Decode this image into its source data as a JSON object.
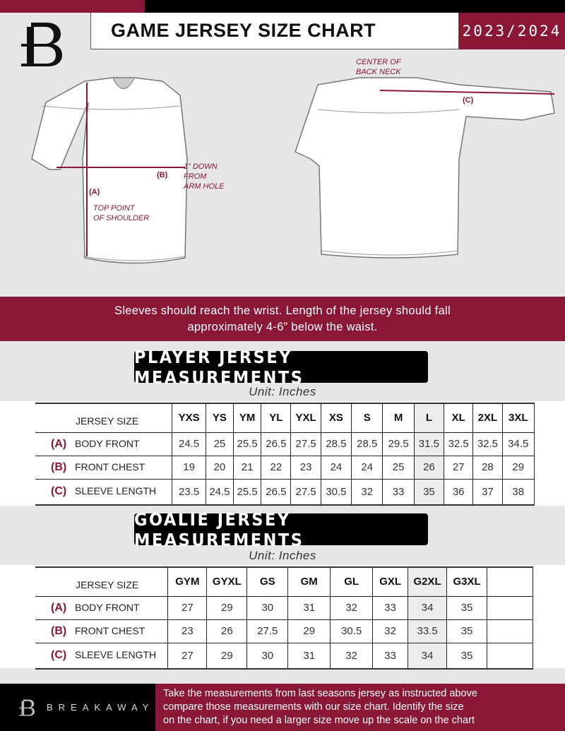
{
  "header": {
    "title": "GAME JERSEY SIZE CHART",
    "season": "2023/2024",
    "logo_text": "B"
  },
  "diagram": {
    "front_notes": {
      "b_label": "(B)",
      "b_note": [
        "1” DOWN",
        "FROM",
        "ARM HOLE"
      ],
      "a_label": "(A)",
      "a_note": [
        "TOP POINT",
        "OF SHOULDER"
      ]
    },
    "back_notes": {
      "center_note": [
        "CENTER OF",
        "BACK NECK"
      ],
      "c_label": "(C)"
    }
  },
  "banner": {
    "lines": [
      "Sleeves should reach the wrist. Length of the jersey should fall",
      "approximately 4-6” below the waist."
    ]
  },
  "player": {
    "heading": "PLAYER JERSEY MEASUREMENTS",
    "unit": "Unit: Inches",
    "size_label": "JERSEY SIZE",
    "sizes": [
      "YXS",
      "YS",
      "YM",
      "YL",
      "YXL",
      "XS",
      "S",
      "M",
      "L",
      "XL",
      "2XL",
      "3XL"
    ],
    "rows": [
      {
        "key": "(A)",
        "name": "BODY FRONT",
        "values": [
          "24.5",
          "25",
          "25.5",
          "26.5",
          "27.5",
          "28.5",
          "28.5",
          "29.5",
          "31.5",
          "32.5",
          "32.5",
          "34.5"
        ]
      },
      {
        "key": "(B)",
        "name": "FRONT CHEST",
        "values": [
          "19",
          "20",
          "21",
          "22",
          "23",
          "24",
          "24",
          "25",
          "26",
          "27",
          "28",
          "29"
        ]
      },
      {
        "key": "(C)",
        "name": "SLEEVE LENGTH",
        "values": [
          "23.5",
          "24.5",
          "25.5",
          "26.5",
          "27.5",
          "30.5",
          "32",
          "33",
          "35",
          "36",
          "37",
          "38"
        ]
      }
    ]
  },
  "goalie": {
    "heading": "GOALIE JERSEY MEASUREMENTS",
    "unit": "Unit: Inches",
    "size_label": "JERSEY SIZE",
    "sizes": [
      "GYM",
      "GYXL",
      "GS",
      "GM",
      "GL",
      "GXL",
      "G2XL",
      "G3XL",
      ""
    ],
    "rows": [
      {
        "key": "(A)",
        "name": "BODY FRONT",
        "values": [
          "27",
          "29",
          "30",
          "31",
          "32",
          "33",
          "34",
          "35",
          ""
        ]
      },
      {
        "key": "(B)",
        "name": "FRONT CHEST",
        "values": [
          "23",
          "26",
          "27.5",
          "29",
          "30.5",
          "32",
          "33.5",
          "35",
          ""
        ]
      },
      {
        "key": "(C)",
        "name": "SLEEVE LENGTH",
        "values": [
          "27",
          "29",
          "30",
          "31",
          "32",
          "33",
          "34",
          "35",
          ""
        ]
      }
    ]
  },
  "footer": {
    "brand": "BREAKAWAY",
    "text": [
      "Take the measurements from last seasons jersey as instructed above",
      "compare those measurements  with our size chart. Identify the size",
      "on the chart, if you need a larger size move up the scale on the chart"
    ]
  },
  "colors": {
    "accent": "#8a1735",
    "dark": "#000000",
    "background": "#e6e6e7"
  }
}
